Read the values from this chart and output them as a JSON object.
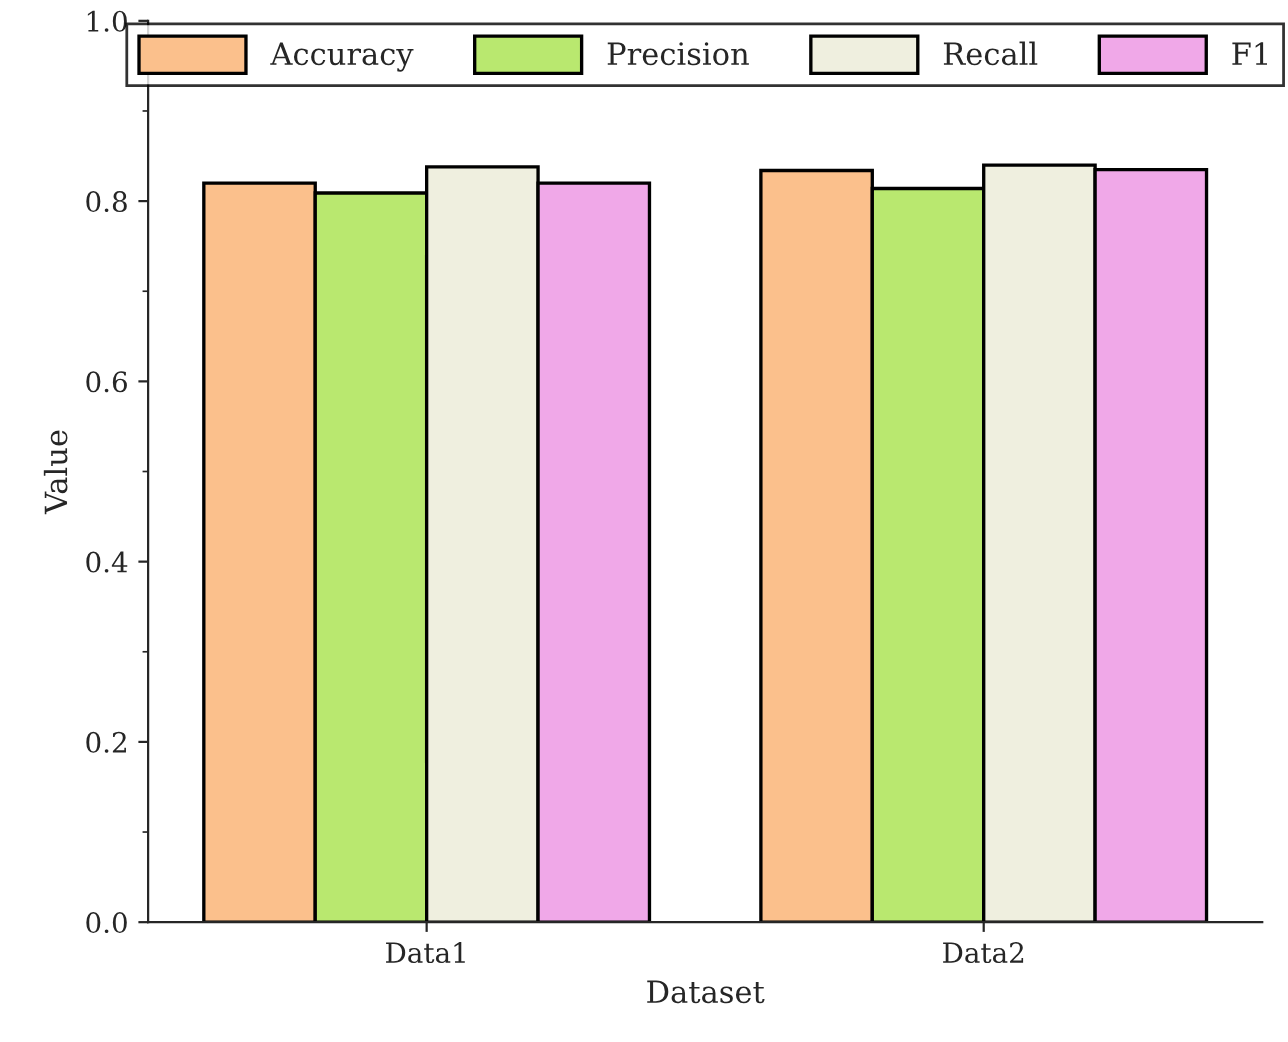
{
  "chart_data": {
    "type": "bar",
    "xlabel": "Dataset",
    "ylabel": "Value",
    "categories": [
      "Data1",
      "Data2"
    ],
    "series": [
      {
        "name": "Accuracy",
        "color": "#fbc08c",
        "values": [
          0.82,
          0.834
        ]
      },
      {
        "name": "Precision",
        "color": "#b9e86f",
        "values": [
          0.809,
          0.814
        ]
      },
      {
        "name": "Recall",
        "color": "#efefdf",
        "values": [
          0.838,
          0.84
        ]
      },
      {
        "name": "F1",
        "color": "#f0a8e8",
        "values": [
          0.82,
          0.835
        ]
      }
    ],
    "ylim": [
      0,
      1.0
    ],
    "yticks": [
      {
        "value": 0,
        "label": "0.0"
      },
      0.2,
      0.4,
      0.6,
      0.8,
      {
        "value": 1,
        "label": "1.0"
      }
    ],
    "grid": false,
    "legend": "top"
  }
}
